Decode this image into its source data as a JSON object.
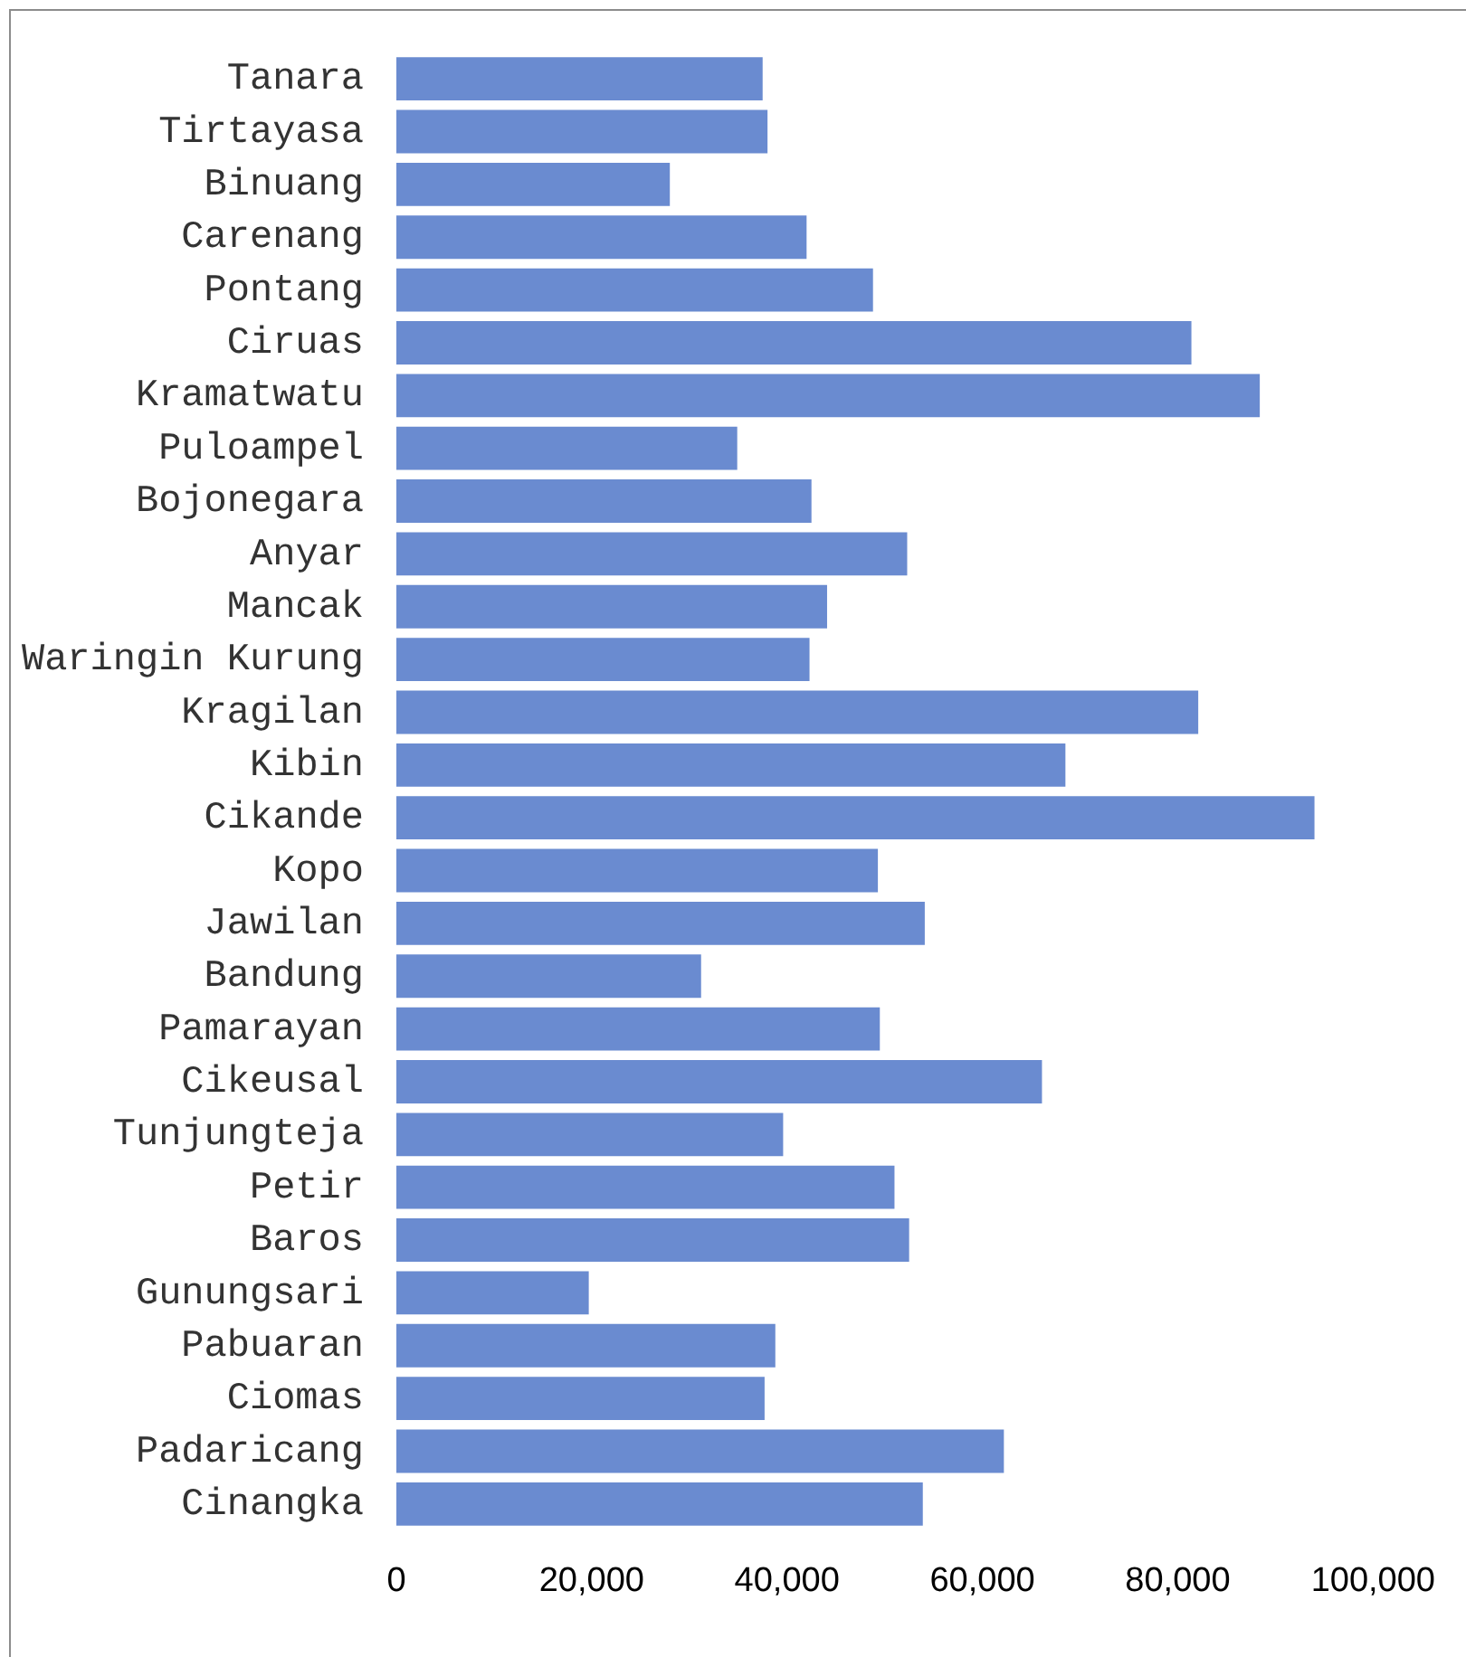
{
  "chart_data": {
    "type": "bar",
    "orientation": "horizontal",
    "categories": [
      "Tanara",
      "Tirtayasa",
      "Binuang",
      "Carenang",
      "Pontang",
      "Ciruas",
      "Kramatwatu",
      "Puloampel",
      "Bojonegara",
      "Anyar",
      "Mancak",
      "Waringin Kurung",
      "Kragilan",
      "Kibin",
      "Cikande",
      "Kopo",
      "Jawilan",
      "Bandung",
      "Pamarayan",
      "Cikeusal",
      "Tunjungteja",
      "Petir",
      "Baros",
      "Gunungsari",
      "Pabuaran",
      "Ciomas",
      "Padaricang",
      "Cinangka"
    ],
    "values": [
      37500,
      38000,
      28000,
      42000,
      48800,
      81400,
      88400,
      34900,
      42500,
      52300,
      44100,
      42300,
      82100,
      68500,
      94000,
      49300,
      54100,
      31200,
      49500,
      66100,
      39600,
      51000,
      52500,
      19700,
      38800,
      37700,
      62200,
      53900
    ],
    "color": "#6a8bd0",
    "xlim": [
      0,
      100000
    ],
    "xticks": [
      {
        "value": 0,
        "label": "0"
      },
      {
        "value": 20000,
        "label": "20,000"
      },
      {
        "value": 40000,
        "label": "40,000"
      },
      {
        "value": 60000,
        "label": "60,000"
      },
      {
        "value": 80000,
        "label": "80,000"
      },
      {
        "value": 100000,
        "label": "100,000"
      }
    ]
  }
}
